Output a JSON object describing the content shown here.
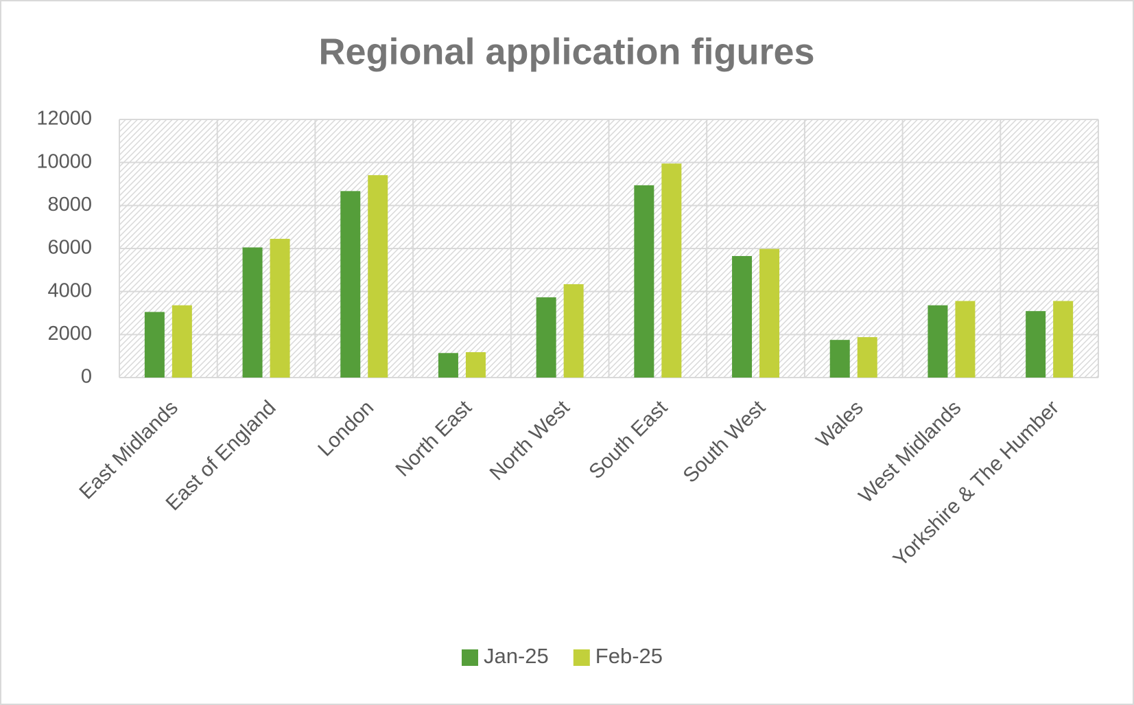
{
  "chart_data": {
    "type": "bar",
    "title": "Regional application figures",
    "categories": [
      "East Midlands",
      "East of England",
      "London",
      "North East",
      "North West",
      "South East",
      "South West",
      "Wales",
      "West Midlands",
      "Yorkshire & The Humber"
    ],
    "series": [
      {
        "name": "Jan-25",
        "color": "#559e3a",
        "values": [
          3050,
          6050,
          8670,
          1140,
          3730,
          8940,
          5650,
          1750,
          3360,
          3090
        ]
      },
      {
        "name": "Feb-25",
        "color": "#c2d03b",
        "values": [
          3360,
          6450,
          9410,
          1180,
          4340,
          9950,
          5980,
          1880,
          3560,
          3560
        ]
      }
    ],
    "ylim": [
      0,
      12000
    ],
    "yticks": [
      0,
      2000,
      4000,
      6000,
      8000,
      10000,
      12000
    ],
    "grid": true,
    "legend": "bottom"
  }
}
